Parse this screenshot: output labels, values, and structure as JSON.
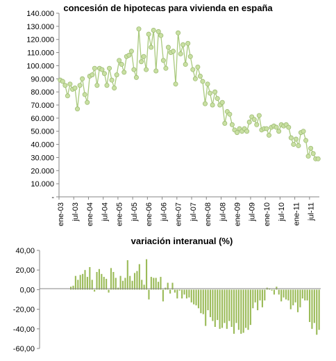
{
  "chart_data": [
    {
      "type": "line",
      "title": "concesión de hipotecas para vivienda en españa",
      "xlabel": "",
      "ylabel": "",
      "ylim": [
        0,
        140000
      ],
      "y_tick_labels": [
        "-",
        "10.000",
        "20.000",
        "30.000",
        "40.000",
        "50.000",
        "60.000",
        "70.000",
        "80.000",
        "90.000",
        "100.000",
        "110.000",
        "120.000",
        "130.000",
        "140.000"
      ],
      "x_tick_labels": [
        "ene-03",
        "jul-03",
        "ene-04",
        "jul-04",
        "ene-05",
        "jul-05",
        "ene-06",
        "jul-06",
        "ene-07",
        "jul-07",
        "ene-08",
        "jul-08",
        "ene-09",
        "jul-09",
        "ene-10",
        "jul-10",
        "ene-11",
        "jul-11"
      ],
      "x_start": "2003-01",
      "x_end": "2011-10",
      "grid": false,
      "legend": "none",
      "marker": "circle",
      "colors": {
        "line": "#a9c97d",
        "marker_fill": "#c9e0a3",
        "marker_edge": "#9dbb73"
      },
      "series": [
        {
          "values": [
            89000,
            88000,
            85000,
            77000,
            86000,
            82000,
            83000,
            67000,
            85000,
            90000,
            78000,
            72000,
            92000,
            93000,
            98000,
            85000,
            98000,
            97000,
            94000,
            85000,
            98000,
            89000,
            83000,
            93000,
            104000,
            101000,
            95000,
            107000,
            108000,
            111000,
            97000,
            91000,
            128000,
            103000,
            107000,
            97000,
            124000,
            114000,
            127000,
            96000,
            126000,
            123000,
            104000,
            98000,
            114000,
            110000,
            111000,
            86000,
            125000,
            109000,
            116000,
            101000,
            117000,
            107000,
            97000,
            90000,
            99000,
            92000,
            88000,
            71000,
            86000,
            79000,
            70000,
            80000,
            75000,
            70000,
            72000,
            56000,
            65000,
            63000,
            55000,
            51000,
            49000,
            52000,
            50000,
            52000,
            50000,
            57000,
            61000,
            59000,
            55000,
            62000,
            51000,
            52000,
            52000,
            47000,
            53000,
            54000,
            53000,
            50000,
            55000,
            54000,
            55000,
            53000,
            45000,
            40000,
            44000,
            39000,
            49000,
            50000,
            43000,
            31000,
            37000,
            33000,
            29000,
            29000
          ]
        }
      ]
    },
    {
      "type": "bar",
      "title": "variación interanual (%)",
      "xlabel": "",
      "ylabel": "",
      "ylim": [
        -60,
        40
      ],
      "y_tick_labels": [
        "-60,00",
        "-40,00",
        "-20,00",
        "0,00",
        "20,00",
        "40,00"
      ],
      "colors": {
        "bar": "#9bbb59"
      },
      "series": [
        {
          "values": [
            3,
            4,
            14,
            10,
            15,
            16,
            20,
            13,
            23,
            10,
            -2,
            18,
            21,
            16,
            13,
            11,
            -3,
            22,
            18,
            12,
            2,
            14,
            9,
            12,
            30,
            14,
            9,
            17,
            19,
            26,
            10,
            5,
            31,
            -10,
            13,
            12,
            12,
            8,
            13,
            -12,
            2,
            7,
            -4,
            7,
            -3,
            -9,
            -1,
            -9,
            -5,
            -9,
            -8,
            -13,
            -15,
            -16,
            -19,
            -24,
            -25,
            -37,
            -21,
            -28,
            -32,
            -38,
            -31,
            -40,
            -39,
            -34,
            -40,
            -32,
            -38,
            -45,
            -34,
            -41,
            -45,
            -44,
            -39,
            -41,
            -36,
            -19,
            -13,
            -21,
            -11,
            -18,
            -11,
            2,
            1,
            -1,
            -5,
            3,
            -5,
            -12,
            -8,
            -10,
            -11,
            -20,
            -16,
            -13,
            -23,
            -18,
            -9,
            -11,
            -11,
            -33,
            -40,
            -34,
            -46,
            -41
          ]
        }
      ]
    }
  ]
}
